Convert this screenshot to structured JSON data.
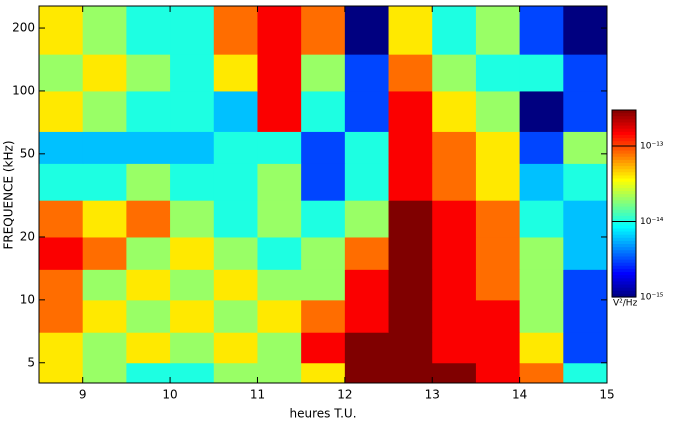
{
  "chart_data": {
    "type": "heatmap",
    "xlabel": "heures T.U.",
    "ylabel": "FREQUENCE (kHz)",
    "xlim": [
      8.5,
      15
    ],
    "xticks": [
      9,
      10,
      11,
      12,
      13,
      14,
      15
    ],
    "ylim": [
      4,
      255
    ],
    "yticks": [
      5,
      10,
      20,
      50,
      100,
      200
    ],
    "ylog": true,
    "xbins": [
      8.5,
      9,
      9.5,
      10,
      10.5,
      11,
      11.5,
      12,
      12.5,
      13,
      13.5,
      14,
      14.5,
      15
    ],
    "ybins": [
      4,
      5,
      7,
      10,
      14,
      20,
      30,
      45,
      64,
      100,
      150,
      255
    ],
    "values": [
      [
        4e-14,
        2e-14,
        1e-14,
        1e-14,
        2e-14,
        2e-14,
        4e-14,
        3e-13,
        3e-13,
        3e-13,
        1.5e-13,
        8e-14,
        1e-14
      ],
      [
        4e-14,
        2e-14,
        4e-14,
        2e-14,
        4e-14,
        2e-14,
        1.5e-13,
        3e-13,
        3e-13,
        1.5e-13,
        1.5e-13,
        4e-14,
        3e-15
      ],
      [
        8e-14,
        4e-14,
        2e-14,
        4e-14,
        2e-14,
        4e-14,
        8e-14,
        1.5e-13,
        3e-13,
        1.5e-13,
        1.5e-13,
        2e-14,
        3e-15
      ],
      [
        8e-14,
        2e-14,
        4e-14,
        2e-14,
        4e-14,
        2e-14,
        2e-14,
        1.5e-13,
        3e-13,
        1.5e-13,
        8e-14,
        2e-14,
        3e-15
      ],
      [
        1.5e-13,
        8e-14,
        2e-14,
        4e-14,
        2e-14,
        1e-14,
        2e-14,
        8e-14,
        3e-13,
        1.5e-13,
        8e-14,
        2e-14,
        6e-15
      ],
      [
        8e-14,
        4e-14,
        8e-14,
        2e-14,
        1e-14,
        2e-14,
        1e-14,
        2e-14,
        3e-13,
        1.5e-13,
        8e-14,
        1e-14,
        6e-15
      ],
      [
        1e-14,
        1e-14,
        2e-14,
        1e-14,
        1e-14,
        2e-14,
        3e-15,
        1e-14,
        1.5e-13,
        8e-14,
        4e-14,
        6e-15,
        1e-14
      ],
      [
        6e-15,
        6e-15,
        6e-15,
        6e-15,
        1e-14,
        1e-14,
        3e-15,
        1e-14,
        1.5e-13,
        8e-14,
        4e-14,
        3e-15,
        2e-14
      ],
      [
        4e-14,
        2e-14,
        1e-14,
        1e-14,
        6e-15,
        1.5e-13,
        1e-14,
        3e-15,
        1.5e-13,
        4e-14,
        2e-14,
        1e-15,
        3e-15
      ],
      [
        2e-14,
        4e-14,
        2e-14,
        1e-14,
        4e-14,
        1.5e-13,
        2e-14,
        3e-15,
        8e-14,
        2e-14,
        1e-14,
        1e-14,
        3e-15
      ],
      [
        4e-14,
        2e-14,
        1e-14,
        1e-14,
        8e-14,
        1.5e-13,
        8e-14,
        1e-15,
        4e-14,
        1e-14,
        2e-14,
        3e-15,
        1e-15
      ]
    ],
    "clim": [
      1e-15,
      3e-13
    ],
    "clog": true,
    "cticks": [
      {
        "value": 1e-15,
        "label": "10⁻¹⁵"
      },
      {
        "value": 1e-14,
        "label": "10⁻¹⁴"
      },
      {
        "value": 1e-13,
        "label": "10⁻¹³"
      }
    ],
    "clabel": "V²/Hz"
  }
}
